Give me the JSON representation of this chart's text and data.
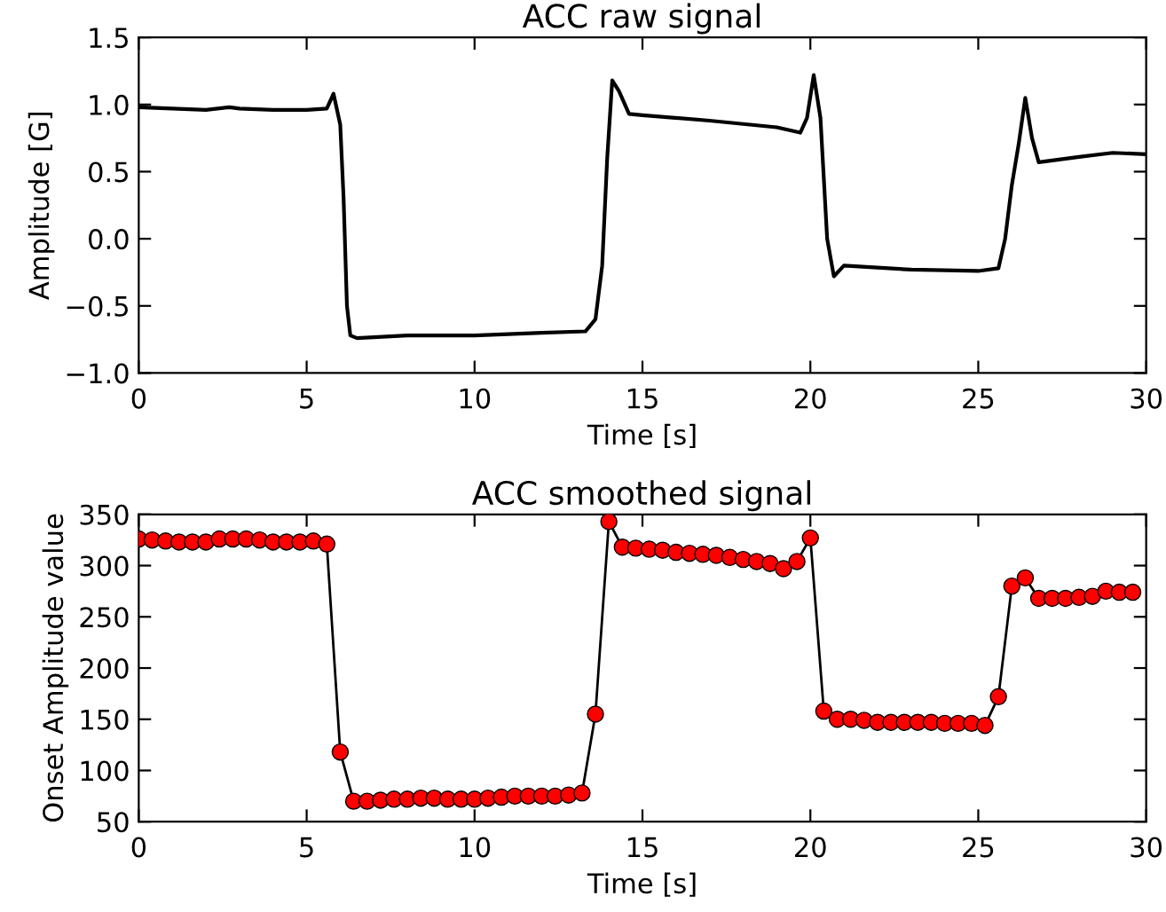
{
  "chart_data": [
    {
      "type": "line",
      "title": "ACC raw signal",
      "xlabel": "Time [s]",
      "ylabel": "Amplitude [G]",
      "xlim": [
        0,
        30
      ],
      "ylim": [
        -1.0,
        1.5
      ],
      "xticks": [
        0,
        5,
        10,
        15,
        20,
        25,
        30
      ],
      "yticks": [
        {
          "value": -1.0,
          "label": "−1.0"
        },
        {
          "value": -0.5,
          "label": "−0.5"
        },
        {
          "value": 0.0,
          "label": "0.0"
        },
        {
          "value": 0.5,
          "label": "0.5"
        },
        {
          "value": 1.0,
          "label": "1.0"
        },
        {
          "value": 1.5,
          "label": "1.5"
        }
      ],
      "grid": false,
      "marker": "none",
      "series": [
        {
          "color": "#000000",
          "x": [
            0,
            1,
            2,
            2.7,
            3,
            4,
            5,
            5.6,
            5.8,
            6.0,
            6.1,
            6.2,
            6.3,
            6.5,
            8,
            10,
            12,
            13.3,
            13.6,
            13.8,
            13.95,
            14.1,
            14.3,
            14.6,
            15,
            17,
            19,
            19.7,
            19.9,
            20.1,
            20.3,
            20.5,
            20.7,
            21,
            23,
            25,
            25.6,
            25.8,
            26.0,
            26.2,
            26.4,
            26.6,
            26.8,
            28,
            29,
            30
          ],
          "values": [
            0.98,
            0.97,
            0.96,
            0.98,
            0.97,
            0.96,
            0.96,
            0.97,
            1.08,
            0.85,
            0.3,
            -0.5,
            -0.72,
            -0.74,
            -0.72,
            -0.72,
            -0.7,
            -0.69,
            -0.6,
            -0.2,
            0.6,
            1.18,
            1.1,
            0.93,
            0.92,
            0.88,
            0.83,
            0.79,
            0.9,
            1.22,
            0.9,
            0.0,
            -0.28,
            -0.2,
            -0.23,
            -0.24,
            -0.22,
            0.0,
            0.4,
            0.7,
            1.05,
            0.75,
            0.57,
            0.61,
            0.64,
            0.63
          ]
        }
      ]
    },
    {
      "type": "line",
      "title": "ACC smoothed signal",
      "xlabel": "Time [s]",
      "ylabel": "Onset Amplitude value",
      "xlim": [
        0,
        30
      ],
      "ylim": [
        50,
        350
      ],
      "xticks": [
        0,
        5,
        10,
        15,
        20,
        25,
        30
      ],
      "yticks": [
        50,
        100,
        150,
        200,
        250,
        300,
        350
      ],
      "grid": false,
      "marker": "circle",
      "series": [
        {
          "color": "#ff0000",
          "x": [
            0,
            0.4,
            0.8,
            1.2,
            1.6,
            2.0,
            2.4,
            2.8,
            3.2,
            3.6,
            4.0,
            4.4,
            4.8,
            5.2,
            5.6,
            6.0,
            6.4,
            6.8,
            7.2,
            7.6,
            8.0,
            8.4,
            8.8,
            9.2,
            9.6,
            10.0,
            10.4,
            10.8,
            11.2,
            11.6,
            12.0,
            12.4,
            12.8,
            13.2,
            13.6,
            14.0,
            14.4,
            14.8,
            15.2,
            15.6,
            16.0,
            16.4,
            16.8,
            17.2,
            17.6,
            18.0,
            18.4,
            18.8,
            19.2,
            19.6,
            20.0,
            20.4,
            20.8,
            21.2,
            21.6,
            22.0,
            22.4,
            22.8,
            23.2,
            23.6,
            24.0,
            24.4,
            24.8,
            25.2,
            25.6,
            26.0,
            26.4,
            26.8,
            27.2,
            27.6,
            28.0,
            28.4,
            28.8,
            29.2,
            29.6
          ],
          "values": [
            326,
            325,
            324,
            323,
            323,
            323,
            326,
            326,
            326,
            325,
            323,
            323,
            323,
            324,
            321,
            118,
            70,
            70,
            71,
            72,
            72,
            73,
            73,
            72,
            72,
            72,
            73,
            74,
            75,
            75,
            75,
            75,
            76,
            78,
            155,
            343,
            318,
            317,
            316,
            315,
            313,
            312,
            311,
            310,
            308,
            306,
            304,
            302,
            297,
            304,
            327,
            158,
            150,
            150,
            149,
            147,
            147,
            147,
            147,
            147,
            146,
            146,
            146,
            144,
            172,
            280,
            288,
            268,
            268,
            268,
            269,
            270,
            275,
            274,
            274
          ]
        }
      ]
    }
  ]
}
